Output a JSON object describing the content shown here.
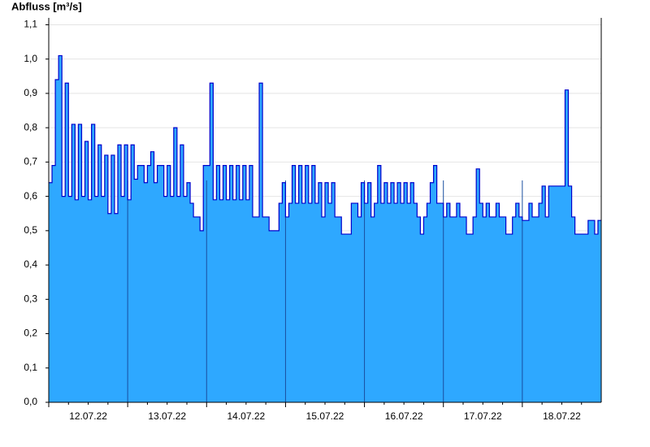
{
  "chart_data": {
    "type": "step-area",
    "title": "Abfluss [m³/s]",
    "categories": [
      "12.07.22",
      "13.07.22",
      "14.07.22",
      "15.07.22",
      "16.07.22",
      "17.07.22",
      "18.07.22"
    ],
    "values": [
      [
        0.64,
        0.69,
        0.94,
        1.01,
        0.6,
        0.93,
        0.6,
        0.81,
        0.59,
        0.81,
        0.6,
        0.76,
        0.59,
        0.81,
        0.6,
        0.75,
        0.6,
        0.72,
        0.55,
        0.72,
        0.55,
        0.75,
        0.6,
        0.75
      ],
      [
        0.59,
        0.75,
        0.65,
        0.69,
        0.69,
        0.64,
        0.69,
        0.73,
        0.64,
        0.69,
        0.69,
        0.6,
        0.69,
        0.6,
        0.8,
        0.6,
        0.75,
        0.6,
        0.64,
        0.58,
        0.54,
        0.54,
        0.5,
        0.69
      ],
      [
        0.69,
        0.93,
        0.59,
        0.69,
        0.59,
        0.69,
        0.59,
        0.69,
        0.59,
        0.69,
        0.59,
        0.69,
        0.59,
        0.69,
        0.54,
        0.54,
        0.93,
        0.54,
        0.54,
        0.5,
        0.5,
        0.5,
        0.58,
        0.64
      ],
      [
        0.54,
        0.58,
        0.69,
        0.58,
        0.69,
        0.58,
        0.69,
        0.58,
        0.69,
        0.58,
        0.64,
        0.54,
        0.64,
        0.58,
        0.64,
        0.54,
        0.54,
        0.49,
        0.49,
        0.49,
        0.58,
        0.58,
        0.54,
        0.64
      ],
      [
        0.58,
        0.64,
        0.54,
        0.58,
        0.69,
        0.58,
        0.64,
        0.58,
        0.64,
        0.58,
        0.64,
        0.58,
        0.64,
        0.58,
        0.64,
        0.58,
        0.54,
        0.49,
        0.54,
        0.58,
        0.64,
        0.69,
        0.58,
        0.58
      ],
      [
        0.54,
        0.58,
        0.54,
        0.54,
        0.58,
        0.54,
        0.54,
        0.49,
        0.49,
        0.54,
        0.68,
        0.58,
        0.54,
        0.58,
        0.54,
        0.54,
        0.58,
        0.54,
        0.54,
        0.49,
        0.49,
        0.54,
        0.58,
        0.54
      ],
      [
        0.53,
        0.53,
        0.58,
        0.54,
        0.54,
        0.58,
        0.63,
        0.54,
        0.63,
        0.63,
        0.63,
        0.63,
        0.63,
        0.91,
        0.63,
        0.54,
        0.49,
        0.49,
        0.49,
        0.49,
        0.53,
        0.53,
        0.49,
        0.53
      ]
    ],
    "fill_color": "#2ea8ff",
    "line_color": "#0000cc",
    "ylim": [
      0,
      1.12
    ],
    "yticks": [
      {
        "value": 0,
        "label": "0,0"
      },
      {
        "value": 0.1,
        "label": "0,1"
      },
      {
        "value": 0.2,
        "label": "0,2"
      },
      {
        "value": 0.3,
        "label": "0,3"
      },
      {
        "value": 0.4,
        "label": "0,4"
      },
      {
        "value": 0.5,
        "label": "0,5"
      },
      {
        "value": 0.6,
        "label": "0,6"
      },
      {
        "value": 0.7,
        "label": "0,7"
      },
      {
        "value": 0.8,
        "label": "0,8"
      },
      {
        "value": 0.9,
        "label": "0,9"
      },
      {
        "value": 1.0,
        "label": "1,0"
      },
      {
        "value": 1.1,
        "label": "1,1"
      }
    ],
    "grid": true
  }
}
